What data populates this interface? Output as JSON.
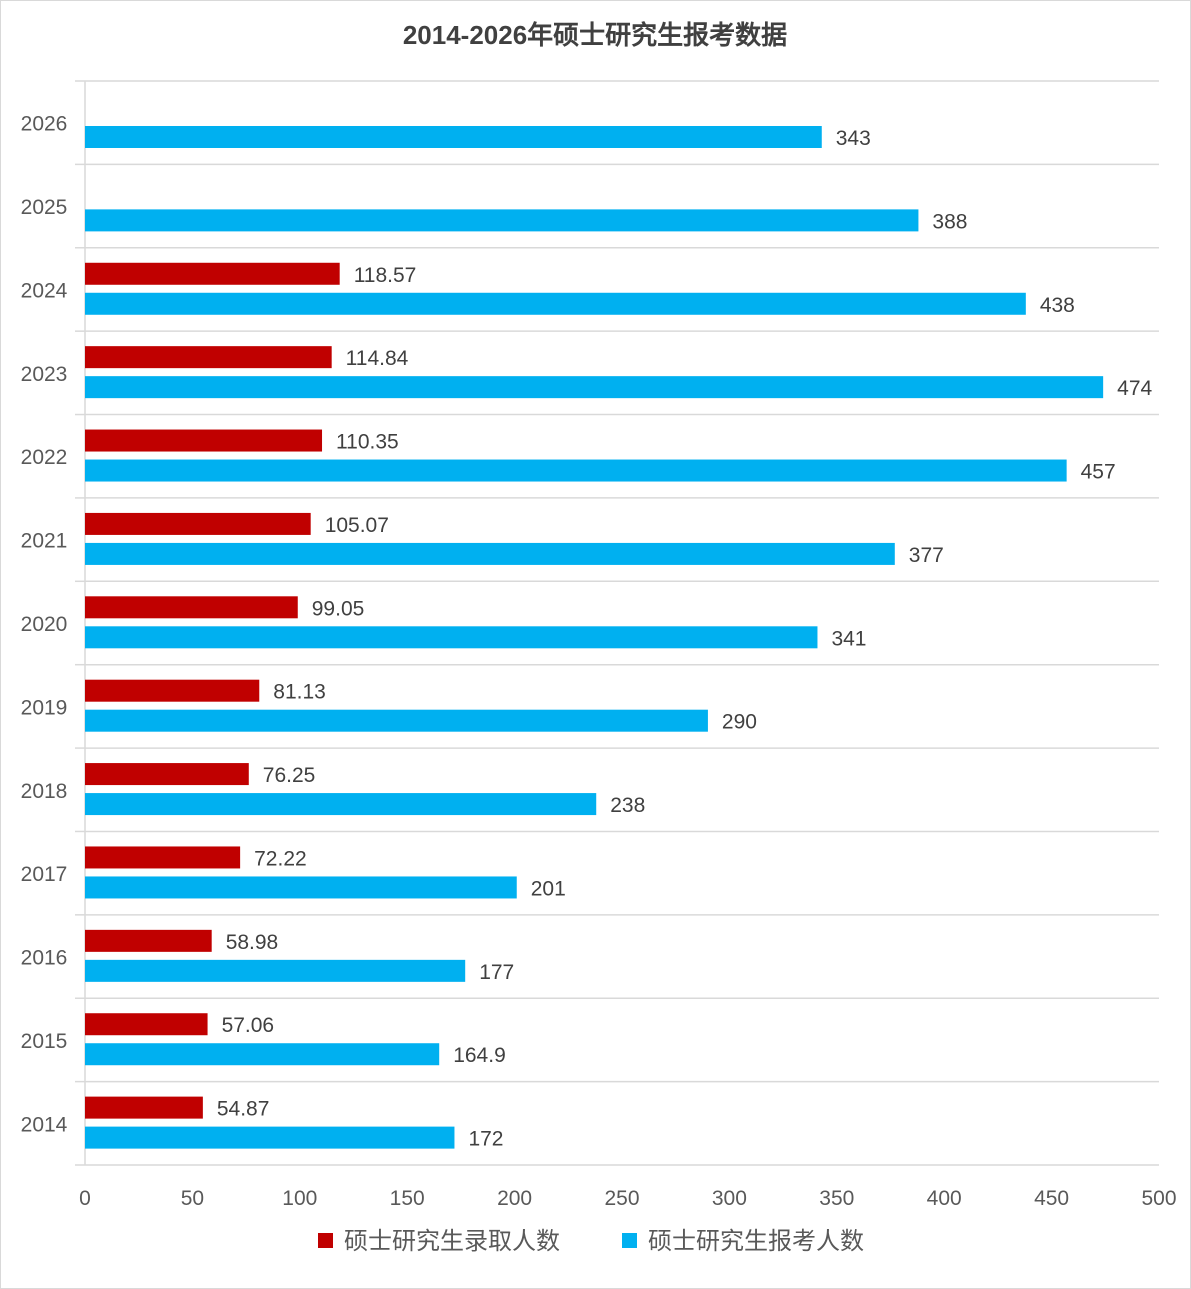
{
  "chart_data": {
    "type": "bar",
    "orientation": "horizontal",
    "title": "2014-2026年硕士研究生报考数据",
    "categories": [
      "2014",
      "2015",
      "2016",
      "2017",
      "2018",
      "2019",
      "2020",
      "2021",
      "2022",
      "2023",
      "2024",
      "2025",
      "2026"
    ],
    "series": [
      {
        "name": "硕士研究生录取人数",
        "color": "#C00000",
        "values": [
          54.87,
          57.06,
          58.98,
          72.22,
          76.25,
          81.13,
          99.05,
          105.07,
          110.35,
          114.84,
          118.57,
          null,
          null
        ],
        "labels": [
          "54.87",
          "57.06",
          "58.98",
          "72.22",
          "76.25",
          "81.13",
          "99.05",
          "105.07",
          "110.35",
          "114.84",
          "118.57",
          null,
          null
        ]
      },
      {
        "name": "硕士研究生报考人数",
        "color": "#00B0F0",
        "values": [
          172,
          164.9,
          177,
          201,
          238,
          290,
          341,
          377,
          457,
          474,
          438,
          388,
          343
        ],
        "labels": [
          "172",
          "164.9",
          "177",
          "201",
          "238",
          "290",
          "341",
          "377",
          "457",
          "474",
          "438",
          "388",
          "343"
        ]
      }
    ],
    "xlim": [
      0,
      500
    ],
    "xticks": [
      "0",
      "50",
      "100",
      "150",
      "200",
      "250",
      "300",
      "350",
      "400",
      "450",
      "500"
    ],
    "grid": true,
    "legend": "bottom"
  }
}
